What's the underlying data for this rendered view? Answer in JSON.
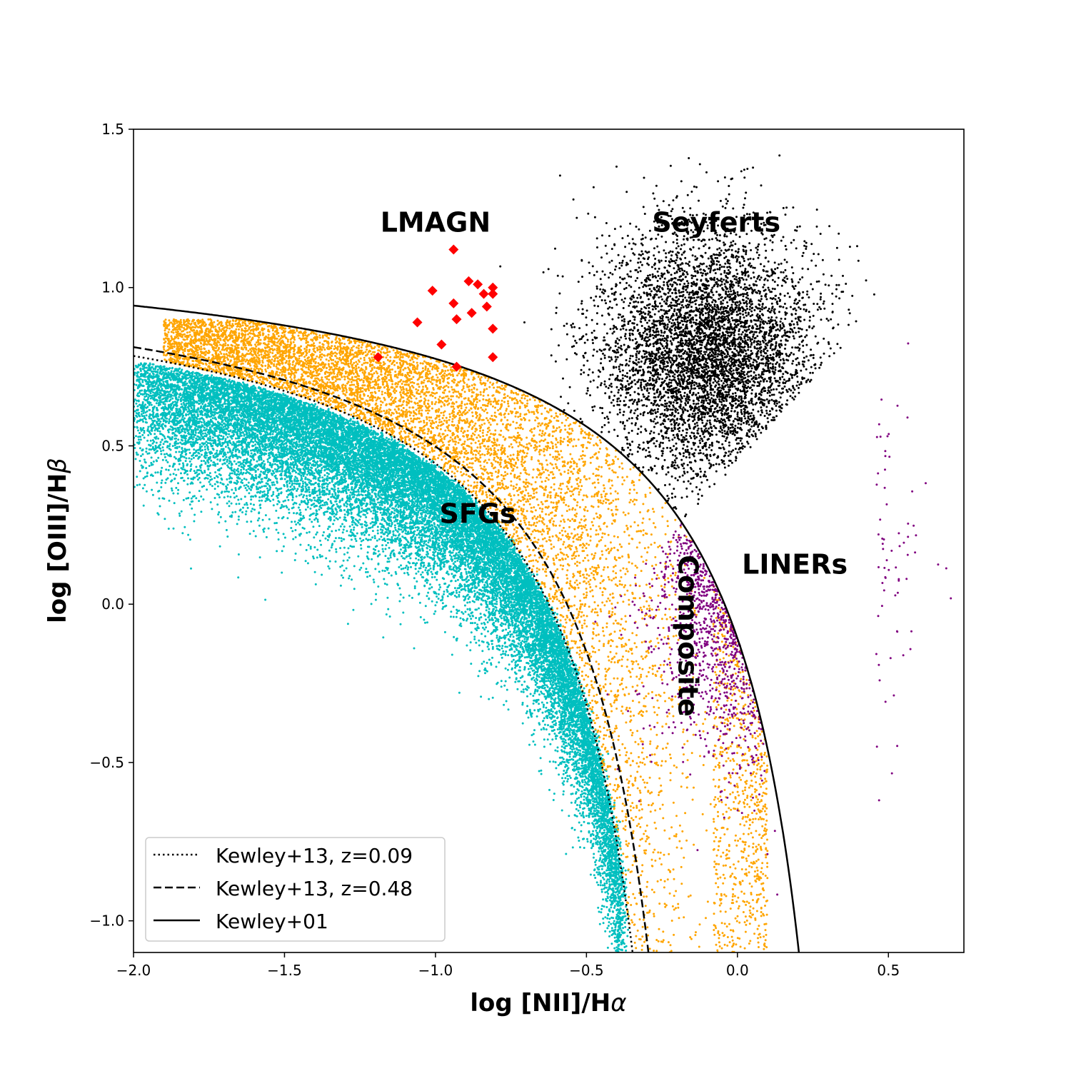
{
  "chart_data": {
    "type": "scatter",
    "xlabel_main": "log [NII]/H",
    "xlabel_greek": "α",
    "ylabel_main": "log [OIII]/H",
    "ylabel_greek": "β",
    "xlim": [
      -2.0,
      0.75
    ],
    "ylim": [
      -1.1,
      1.5
    ],
    "x_ticks": [
      -2.0,
      -1.5,
      -1.0,
      -0.5,
      0.0,
      0.5
    ],
    "x_tick_labels": [
      "−2.0",
      "−1.5",
      "−1.0",
      "−0.5",
      "0.0",
      "0.5"
    ],
    "y_ticks": [
      -1.0,
      -0.5,
      0.0,
      0.5,
      1.0,
      1.5
    ],
    "y_tick_labels": [
      "−1.0",
      "−0.5",
      "0.0",
      "0.5",
      "1.0",
      "1.5"
    ],
    "grid": false,
    "legend_position": "lower-left",
    "region_labels": [
      {
        "text": "LMAGN",
        "x": -1.0,
        "y": 1.2
      },
      {
        "text": "Seyferts",
        "x": -0.07,
        "y": 1.2
      },
      {
        "text": "SFGs",
        "x": -0.86,
        "y": 0.28
      },
      {
        "text": "LINERs",
        "x": 0.19,
        "y": 0.12
      },
      {
        "text": "Composite",
        "x": -0.17,
        "y": -0.1,
        "rotation": 90
      }
    ],
    "series": [
      {
        "label": "SFGs",
        "color": "#00bfbf",
        "marker": "dot"
      },
      {
        "label": "Composite",
        "color": "#ffa500",
        "marker": "dot"
      },
      {
        "label": "Seyferts",
        "color": "#000000",
        "marker": "dot"
      },
      {
        "label": "LINERs",
        "color": "#800080",
        "marker": "dot"
      },
      {
        "label": "LMAGN",
        "color": "#ff0000",
        "marker": "diamond",
        "points": [
          [
            -0.94,
            1.12
          ],
          [
            -0.89,
            1.02
          ],
          [
            -0.86,
            1.01
          ],
          [
            -0.81,
            1.0
          ],
          [
            -1.01,
            0.99
          ],
          [
            -0.81,
            0.98
          ],
          [
            -0.84,
            0.98
          ],
          [
            -0.83,
            0.94
          ],
          [
            -0.94,
            0.95
          ],
          [
            -0.88,
            0.92
          ],
          [
            -0.93,
            0.9
          ],
          [
            -1.06,
            0.89
          ],
          [
            -0.81,
            0.87
          ],
          [
            -0.98,
            0.82
          ],
          [
            -1.19,
            0.78
          ],
          [
            -0.81,
            0.78
          ],
          [
            -0.93,
            0.75
          ]
        ]
      }
    ],
    "curves": [
      {
        "name": "Kewley+13, z=0.09",
        "style": "dotted",
        "shift": -0.07,
        "amp": 0.61,
        "offset": 1.1
      },
      {
        "name": "Kewley+13, z=0.48",
        "style": "dashed",
        "shift": -0.02,
        "amp": 0.61,
        "offset": 1.12
      },
      {
        "name": "Kewley+01",
        "style": "solid",
        "shift": 0.47,
        "amp": 0.61,
        "offset": 1.19
      }
    ]
  }
}
